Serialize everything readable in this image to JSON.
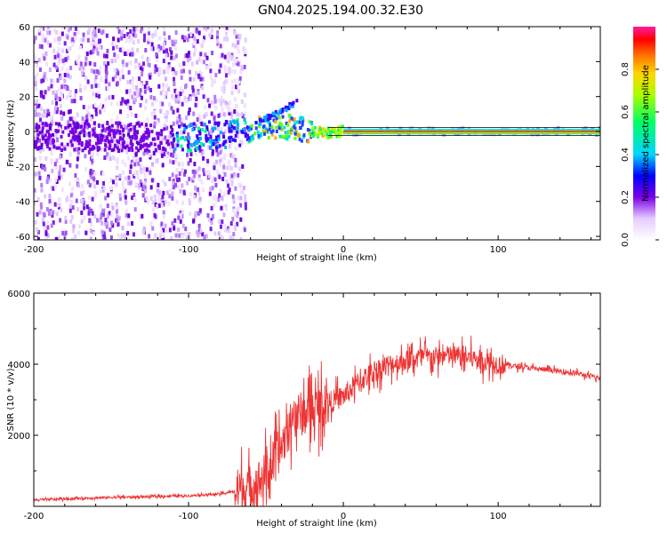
{
  "title": "GN04.2025.194.00.32.E30",
  "chart_data": [
    {
      "type": "heatmap",
      "xlabel": "Height of straight line (km)",
      "ylabel": "Frequency (Hz)",
      "xlim": [
        -200,
        166
      ],
      "ylim": [
        -62,
        60
      ],
      "xticks": [
        -200,
        -100,
        0,
        100
      ],
      "yticks": [
        60,
        40,
        20,
        0,
        -20,
        -40,
        -60
      ],
      "noise_region_x": [
        -200,
        -63
      ],
      "trend_points": [
        {
          "x": -100,
          "y": -3
        },
        {
          "x": -75,
          "y": -2
        },
        {
          "x": -60,
          "y": 1
        },
        {
          "x": -45,
          "y": 3
        },
        {
          "x": -30,
          "y": 2
        },
        {
          "x": -20,
          "y": 0
        },
        {
          "x": -10,
          "y": -1
        },
        {
          "x": 0,
          "y": 0
        },
        {
          "x": 166,
          "y": 0
        }
      ],
      "stable_band": {
        "x": [
          0,
          166
        ],
        "y": 0
      },
      "colorbar": {
        "label": "Normalized spectral amplitude",
        "range": [
          0.0,
          1.0
        ],
        "ticks": [
          0.0,
          0.2,
          0.4,
          0.6,
          0.8
        ],
        "tick_labels": [
          "0.0",
          "0.2",
          "0.4",
          "0.6",
          "0.8"
        ]
      }
    },
    {
      "type": "line",
      "xlabel": "Height of straight line (km)",
      "ylabel": "SNR (10 * v/v)",
      "xlim": [
        -200,
        166
      ],
      "ylim": [
        0,
        6000
      ],
      "xticks": [
        -200,
        -100,
        0,
        100
      ],
      "yticks": [
        2000,
        4000,
        6000
      ],
      "series": [
        {
          "color": "#ee3333",
          "x": [
            -200,
            -180,
            -160,
            -140,
            -120,
            -100,
            -80,
            -70,
            -60,
            -55,
            -50,
            -45,
            -40,
            -35,
            -30,
            -25,
            -20,
            -15,
            -10,
            -5,
            0,
            5,
            10,
            20,
            30,
            40,
            50,
            60,
            70,
            80,
            90,
            100,
            105,
            110,
            120,
            130,
            140,
            150,
            160,
            166
          ],
          "y": [
            180,
            210,
            240,
            260,
            280,
            300,
            350,
            420,
            550,
            700,
            900,
            1250,
            1700,
            2200,
            2600,
            2600,
            2700,
            2800,
            2900,
            3000,
            3100,
            3300,
            3500,
            3800,
            4000,
            4100,
            4200,
            4200,
            4250,
            4200,
            4100,
            4000,
            4000,
            3950,
            3900,
            3850,
            3800,
            3750,
            3650,
            3600
          ]
        }
      ]
    }
  ]
}
